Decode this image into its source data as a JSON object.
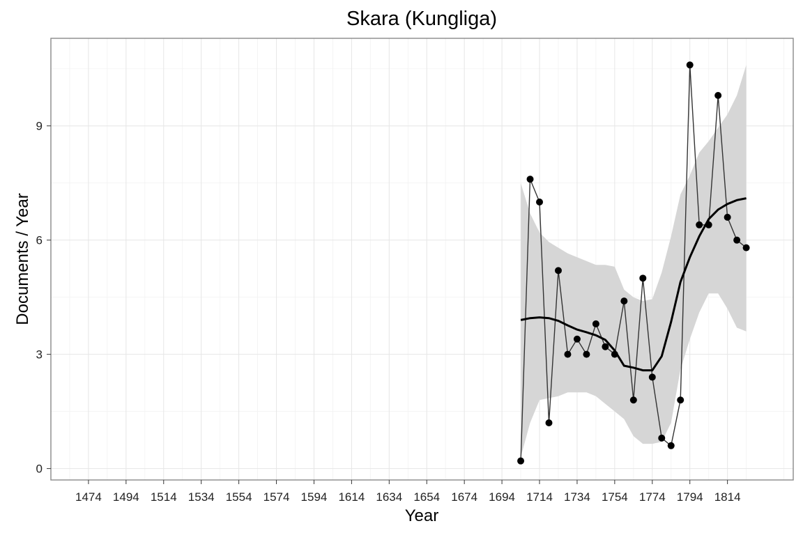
{
  "chart_data": {
    "type": "line",
    "title": "Skara (Kungliga)",
    "xlabel": "Year",
    "ylabel": "Documents / Year",
    "xlim": [
      1454,
      1849
    ],
    "ylim": [
      -0.3,
      11.3
    ],
    "x_ticks": [
      1474,
      1494,
      1514,
      1534,
      1554,
      1574,
      1594,
      1614,
      1634,
      1654,
      1674,
      1694,
      1714,
      1734,
      1754,
      1774,
      1794,
      1814
    ],
    "y_ticks": [
      0,
      3,
      6,
      9
    ],
    "grid": true,
    "series": [
      {
        "style": "points-connected",
        "color": "#000000",
        "x": [
          1704,
          1709,
          1714,
          1719,
          1724,
          1729,
          1734,
          1739,
          1744,
          1749,
          1754,
          1759,
          1764,
          1769,
          1774,
          1779,
          1784,
          1789,
          1794,
          1799,
          1804,
          1809,
          1814,
          1819,
          1824
        ],
        "y": [
          0.2,
          7.6,
          7.0,
          1.2,
          5.2,
          3.0,
          3.4,
          3.0,
          3.8,
          3.2,
          3.0,
          4.4,
          1.8,
          5.0,
          2.4,
          0.8,
          0.6,
          1.8,
          10.6,
          6.4,
          6.4,
          9.8,
          6.6,
          6.0,
          5.8
        ]
      },
      {
        "style": "smooth",
        "color": "#000000",
        "x": [
          1704,
          1709,
          1714,
          1719,
          1724,
          1729,
          1734,
          1739,
          1744,
          1749,
          1754,
          1759,
          1764,
          1769,
          1774,
          1779,
          1784,
          1789,
          1794,
          1799,
          1804,
          1809,
          1814,
          1819,
          1824
        ],
        "y": [
          3.9,
          3.95,
          3.97,
          3.95,
          3.88,
          3.76,
          3.65,
          3.58,
          3.5,
          3.38,
          3.1,
          2.7,
          2.65,
          2.58,
          2.58,
          2.95,
          3.85,
          4.9,
          5.55,
          6.1,
          6.55,
          6.8,
          6.95,
          7.05,
          7.1
        ],
        "ci_lower": [
          0.3,
          1.2,
          1.8,
          1.85,
          1.9,
          2.0,
          2.0,
          2.0,
          1.9,
          1.7,
          1.5,
          1.3,
          0.85,
          0.65,
          0.65,
          0.7,
          1.2,
          2.6,
          3.4,
          4.1,
          4.6,
          4.6,
          4.2,
          3.7,
          3.6
        ],
        "ci_upper": [
          7.5,
          6.7,
          6.2,
          5.95,
          5.8,
          5.65,
          5.55,
          5.45,
          5.35,
          5.35,
          5.3,
          4.7,
          4.5,
          4.4,
          4.45,
          5.15,
          6.1,
          7.2,
          7.7,
          8.3,
          8.6,
          8.95,
          9.3,
          9.8,
          10.6
        ]
      }
    ]
  }
}
